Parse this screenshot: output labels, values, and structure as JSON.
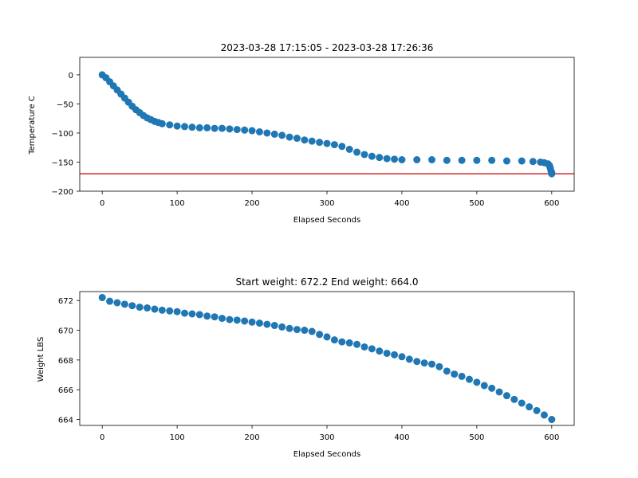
{
  "colors": {
    "marker": "#1f77b4",
    "threshold_line": "#d62728",
    "axes": "#000000",
    "background": "#ffffff"
  },
  "chart_data": [
    {
      "type": "scatter",
      "title": "2023-03-28 17:15:05 - 2023-03-28 17:26:36",
      "xlabel": "Elapsed Seconds",
      "ylabel": "Temperature C",
      "xlim": [
        -30,
        630
      ],
      "ylim": [
        -200,
        30
      ],
      "xticks": [
        0,
        100,
        200,
        300,
        400,
        500,
        600
      ],
      "yticks": [
        -200,
        -150,
        -100,
        -50,
        0
      ],
      "grid": false,
      "legend": "none",
      "hline": {
        "y": -170,
        "color": "#d62728"
      },
      "series": [
        {
          "marker_color": "#1f77b4",
          "points": [
            [
              0,
              0
            ],
            [
              5,
              -5
            ],
            [
              10,
              -12
            ],
            [
              15,
              -19
            ],
            [
              20,
              -26
            ],
            [
              25,
              -33
            ],
            [
              30,
              -40
            ],
            [
              35,
              -47
            ],
            [
              40,
              -54
            ],
            [
              45,
              -60
            ],
            [
              50,
              -65
            ],
            [
              55,
              -70
            ],
            [
              60,
              -74
            ],
            [
              65,
              -77
            ],
            [
              70,
              -80
            ],
            [
              75,
              -82
            ],
            [
              80,
              -84
            ],
            [
              90,
              -86
            ],
            [
              100,
              -88
            ],
            [
              110,
              -89
            ],
            [
              120,
              -90
            ],
            [
              130,
              -91
            ],
            [
              140,
              -91
            ],
            [
              150,
              -92
            ],
            [
              160,
              -92
            ],
            [
              170,
              -93
            ],
            [
              180,
              -94
            ],
            [
              190,
              -95
            ],
            [
              200,
              -96
            ],
            [
              210,
              -98
            ],
            [
              220,
              -100
            ],
            [
              230,
              -102
            ],
            [
              240,
              -104
            ],
            [
              250,
              -107
            ],
            [
              260,
              -109
            ],
            [
              270,
              -112
            ],
            [
              280,
              -114
            ],
            [
              290,
              -116
            ],
            [
              300,
              -118
            ],
            [
              310,
              -120
            ],
            [
              320,
              -123
            ],
            [
              330,
              -128
            ],
            [
              340,
              -133
            ],
            [
              350,
              -137
            ],
            [
              360,
              -140
            ],
            [
              370,
              -142
            ],
            [
              380,
              -144
            ],
            [
              390,
              -145
            ],
            [
              400,
              -146
            ],
            [
              420,
              -146
            ],
            [
              440,
              -146
            ],
            [
              460,
              -147
            ],
            [
              480,
              -147
            ],
            [
              500,
              -147
            ],
            [
              520,
              -147
            ],
            [
              540,
              -148
            ],
            [
              560,
              -148
            ],
            [
              575,
              -149
            ],
            [
              585,
              -150
            ],
            [
              590,
              -151
            ],
            [
              595,
              -153
            ],
            [
              597,
              -156
            ],
            [
              598,
              -160
            ],
            [
              599,
              -165
            ],
            [
              600,
              -168
            ],
            [
              600,
              -170
            ]
          ]
        }
      ]
    },
    {
      "type": "scatter",
      "title": "Start weight: 672.2 End weight: 664.0",
      "xlabel": "Elapsed Seconds",
      "ylabel": "Weight LBS",
      "xlim": [
        -30,
        630
      ],
      "ylim": [
        663.6,
        672.6
      ],
      "xticks": [
        0,
        100,
        200,
        300,
        400,
        500,
        600
      ],
      "yticks": [
        664,
        666,
        668,
        670,
        672
      ],
      "grid": false,
      "legend": "none",
      "series": [
        {
          "marker_color": "#1f77b4",
          "points": [
            [
              0,
              672.2
            ],
            [
              10,
              671.95
            ],
            [
              20,
              671.85
            ],
            [
              30,
              671.75
            ],
            [
              40,
              671.65
            ],
            [
              50,
              671.55
            ],
            [
              60,
              671.5
            ],
            [
              70,
              671.42
            ],
            [
              80,
              671.35
            ],
            [
              90,
              671.3
            ],
            [
              100,
              671.25
            ],
            [
              110,
              671.15
            ],
            [
              120,
              671.1
            ],
            [
              130,
              671.05
            ],
            [
              140,
              670.95
            ],
            [
              150,
              670.9
            ],
            [
              160,
              670.8
            ],
            [
              170,
              670.72
            ],
            [
              180,
              670.68
            ],
            [
              190,
              670.62
            ],
            [
              200,
              670.55
            ],
            [
              210,
              670.48
            ],
            [
              220,
              670.4
            ],
            [
              230,
              670.32
            ],
            [
              240,
              670.22
            ],
            [
              250,
              670.12
            ],
            [
              260,
              670.05
            ],
            [
              270,
              670.0
            ],
            [
              280,
              669.92
            ],
            [
              290,
              669.72
            ],
            [
              300,
              669.55
            ],
            [
              310,
              669.35
            ],
            [
              320,
              669.22
            ],
            [
              330,
              669.15
            ],
            [
              340,
              669.05
            ],
            [
              350,
              668.88
            ],
            [
              360,
              668.75
            ],
            [
              370,
              668.6
            ],
            [
              380,
              668.45
            ],
            [
              390,
              668.35
            ],
            [
              400,
              668.22
            ],
            [
              410,
              668.05
            ],
            [
              420,
              667.9
            ],
            [
              430,
              667.8
            ],
            [
              440,
              667.72
            ],
            [
              450,
              667.55
            ],
            [
              460,
              667.25
            ],
            [
              470,
              667.05
            ],
            [
              480,
              666.9
            ],
            [
              490,
              666.7
            ],
            [
              500,
              666.5
            ],
            [
              510,
              666.28
            ],
            [
              520,
              666.1
            ],
            [
              530,
              665.85
            ],
            [
              540,
              665.6
            ],
            [
              550,
              665.35
            ],
            [
              560,
              665.1
            ],
            [
              570,
              664.85
            ],
            [
              580,
              664.6
            ],
            [
              590,
              664.3
            ],
            [
              600,
              664.0
            ]
          ]
        }
      ]
    }
  ]
}
